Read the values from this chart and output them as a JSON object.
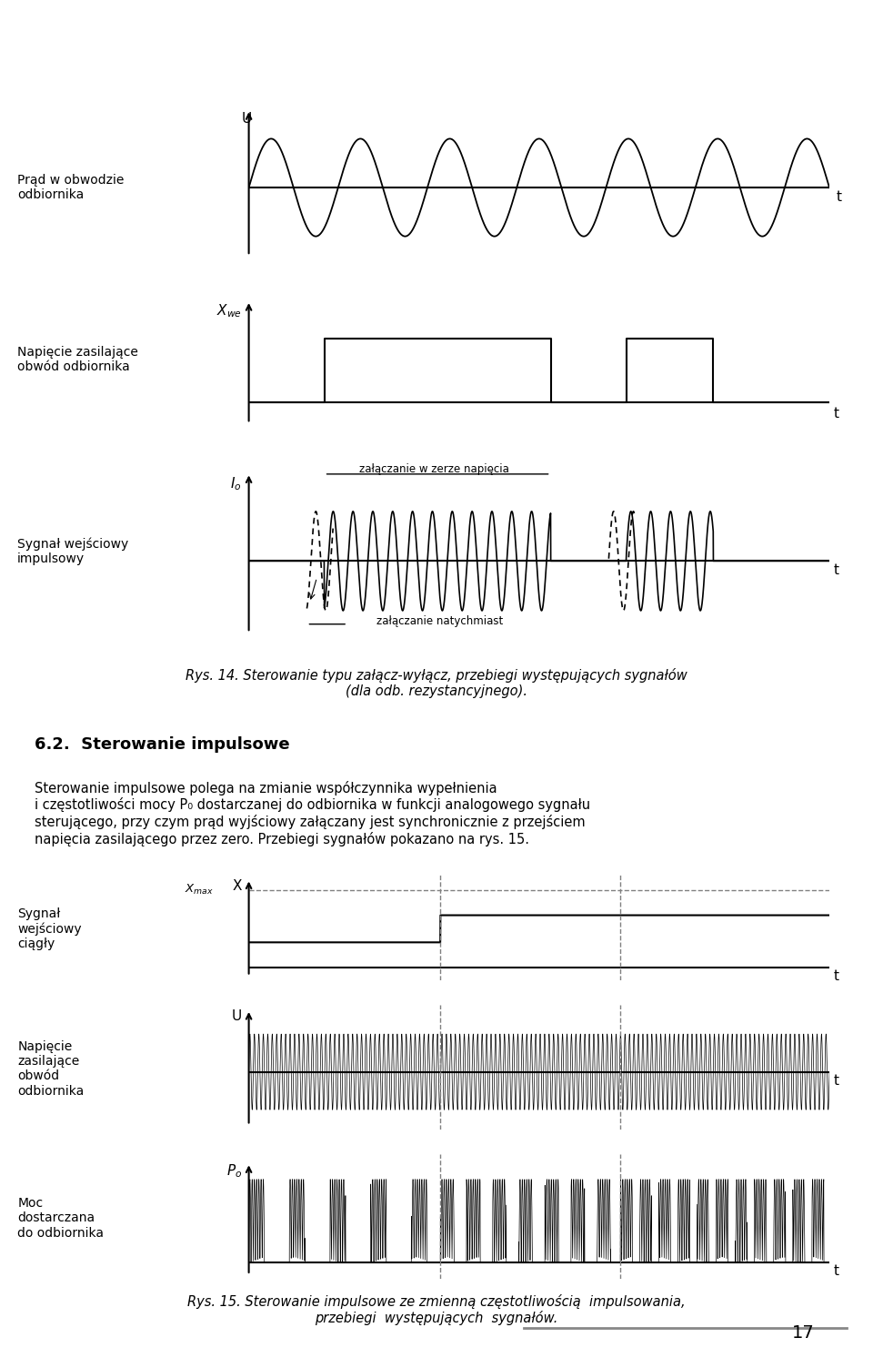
{
  "bg_color": "#ffffff",
  "fig_width": 9.6,
  "fig_height": 14.92,
  "title1_label": "Prąd w obwodzie\nodbiornika",
  "title2_label": "Napięcie zasilające\nobwód odbiornika",
  "title3_label": "Sygnał wejściowy\nimpulsowy",
  "title4_label": "Sygnał\nwejściowy\nciągły",
  "title5_label": "Napięcie\nzasilające\nobwód\nodbiornika",
  "title6_label": "Moc\ndostarczana\ndo odbiornika",
  "caption1_line1": "Rys. 14. Sterowanie typu załącz-wyłącz, przebiegi występujących sygnałów",
  "caption1_line2": "(dla odb. rezystancyjnego).",
  "section_title": "6.2.  Sterowanie impulsowe",
  "body_text": "Sterowanie impulsowe polega na zmianie współczynnika wypełnienia\ni częstotliwości mocy P₀ dostarczanej do odbiornika w funkcji analogowego sygnału\nsterującego, przy czym prąd wyjściowy załączany jest synchronicznie z przejściem\nnapięcia zasilającego przez zero. Przebiegi sygnałów pokazano na rys. 15.",
  "caption2_line1": "Rys. 15. Sterowanie impulsowe ze zmienną częstotliwością  impulsowania,",
  "caption2_line2": "przebiegi  występujących  sygnałów.",
  "page_number": "17",
  "annot_zero": "załączanie w zerze napięcia",
  "annot_instant": "załączanie natychmiast"
}
